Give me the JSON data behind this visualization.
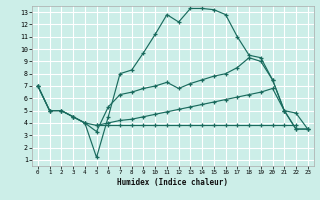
{
  "xlabel": "Humidex (Indice chaleur)",
  "xlim": [
    -0.5,
    23.5
  ],
  "ylim": [
    0.5,
    13.5
  ],
  "xticks": [
    0,
    1,
    2,
    3,
    4,
    5,
    6,
    7,
    8,
    9,
    10,
    11,
    12,
    13,
    14,
    15,
    16,
    17,
    18,
    19,
    20,
    21,
    22,
    23
  ],
  "yticks": [
    1,
    2,
    3,
    4,
    5,
    6,
    7,
    8,
    9,
    10,
    11,
    12,
    13
  ],
  "bg_color": "#cceee8",
  "grid_color": "#ffffff",
  "line_color": "#1a6b5e",
  "curve1_x": [
    0,
    1,
    2,
    3,
    4,
    5,
    6,
    7,
    8,
    9,
    10,
    11,
    12,
    13,
    14,
    15,
    16,
    17,
    18,
    19,
    20,
    21,
    22,
    23
  ],
  "curve1_y": [
    7.0,
    5.0,
    5.0,
    4.5,
    4.0,
    1.2,
    4.5,
    8.0,
    8.3,
    9.7,
    11.2,
    12.8,
    12.2,
    13.3,
    13.3,
    13.2,
    12.8,
    11.0,
    9.5,
    9.3,
    7.5,
    5.0,
    4.8,
    3.5
  ],
  "curve2_x": [
    0,
    1,
    2,
    3,
    4,
    5,
    6,
    7,
    8,
    9,
    10,
    11,
    12,
    13,
    14,
    15,
    16,
    17,
    18,
    19,
    20,
    21,
    22,
    23
  ],
  "curve2_y": [
    7.0,
    5.0,
    5.0,
    4.5,
    4.0,
    3.3,
    5.3,
    6.3,
    6.5,
    6.8,
    7.0,
    7.3,
    6.8,
    7.2,
    7.5,
    7.8,
    8.0,
    8.5,
    9.3,
    9.0,
    7.5,
    5.0,
    3.5,
    3.5
  ],
  "curve3_x": [
    0,
    1,
    2,
    3,
    4,
    5,
    6,
    7,
    8,
    9,
    10,
    11,
    12,
    13,
    14,
    15,
    16,
    17,
    18,
    19,
    20,
    21,
    22,
    23
  ],
  "curve3_y": [
    7.0,
    5.0,
    5.0,
    4.5,
    4.0,
    3.8,
    4.0,
    4.2,
    4.3,
    4.5,
    4.7,
    4.9,
    5.1,
    5.3,
    5.5,
    5.7,
    5.9,
    6.1,
    6.3,
    6.5,
    6.8,
    5.0,
    3.5,
    3.5
  ],
  "flat_x": [
    5,
    6,
    7,
    8,
    9,
    10,
    11,
    12,
    13,
    14,
    15,
    16,
    17,
    18,
    19,
    20,
    21,
    22
  ],
  "flat_y": [
    3.8,
    3.8,
    3.8,
    3.8,
    3.8,
    3.8,
    3.8,
    3.8,
    3.8,
    3.8,
    3.8,
    3.8,
    3.8,
    3.8,
    3.8,
    3.8,
    3.8,
    3.8
  ]
}
